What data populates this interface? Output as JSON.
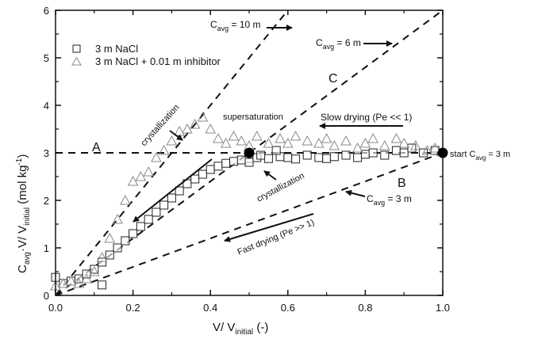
{
  "chart_data": {
    "type": "scatter",
    "title": "",
    "xlabel": {
      "main": "V/ V",
      "sub": "initial",
      "suffix": " (-)"
    },
    "ylabel": {
      "main": "C",
      "sub1": "avg",
      "mid": "·V/ V",
      "sub2": "initial",
      "suffix": " (mol kg",
      "sup": "-1",
      "end": ")"
    },
    "xlim": [
      0,
      1.0
    ],
    "ylim": [
      0,
      6
    ],
    "xticks": [
      0.0,
      0.2,
      0.4,
      0.6,
      0.8,
      1.0
    ],
    "xtick_labels": [
      "0.0",
      "0.2",
      "0.4",
      "0.6",
      "0.8",
      "1.0"
    ],
    "yticks": [
      0,
      1,
      2,
      3,
      4,
      5,
      6
    ],
    "ytick_labels": [
      "0",
      "1",
      "2",
      "3",
      "4",
      "5",
      "6"
    ],
    "grid": false,
    "legend": {
      "placement": "top-left",
      "entries": [
        {
          "label": "3 m NaCl",
          "marker": "square",
          "color": "#222222"
        },
        {
          "label": "3 m NaCl + 0.01 m inhibitor",
          "marker": "triangle",
          "color": "#888888"
        }
      ]
    },
    "series": [
      {
        "name": "3 m NaCl",
        "marker": "square",
        "color": "#222222",
        "x": [
          0.0,
          0.02,
          0.04,
          0.06,
          0.08,
          0.1,
          0.12,
          0.14,
          0.16,
          0.18,
          0.2,
          0.22,
          0.24,
          0.26,
          0.28,
          0.3,
          0.32,
          0.34,
          0.36,
          0.38,
          0.4,
          0.42,
          0.44,
          0.46,
          0.48,
          0.5,
          0.52,
          0.55,
          0.58,
          0.6,
          0.62,
          0.65,
          0.68,
          0.7,
          0.72,
          0.75,
          0.78,
          0.8,
          0.82,
          0.85,
          0.88,
          0.9,
          0.92,
          0.95,
          0.98,
          0.12,
          0.5,
          0.53,
          0.57
        ],
        "y": [
          0.38,
          0.25,
          0.3,
          0.35,
          0.45,
          0.55,
          0.7,
          0.85,
          1.0,
          1.15,
          1.3,
          1.45,
          1.6,
          1.75,
          1.9,
          2.05,
          2.2,
          2.35,
          2.45,
          2.55,
          2.65,
          2.72,
          2.78,
          2.82,
          2.85,
          2.88,
          2.9,
          2.88,
          2.92,
          2.9,
          2.87,
          2.95,
          2.9,
          2.88,
          2.92,
          2.95,
          2.9,
          2.97,
          3.0,
          2.95,
          3.05,
          3.0,
          3.1,
          3.0,
          3.05,
          0.22,
          2.8,
          2.95,
          3.05
        ]
      },
      {
        "name": "3 m NaCl + 0.01 m inhibitor",
        "marker": "triangle",
        "color": "#888888",
        "x": [
          0.0,
          0.02,
          0.04,
          0.06,
          0.08,
          0.1,
          0.12,
          0.14,
          0.16,
          0.18,
          0.2,
          0.22,
          0.24,
          0.26,
          0.28,
          0.3,
          0.32,
          0.34,
          0.36,
          0.38,
          0.4,
          0.42,
          0.44,
          0.46,
          0.48,
          0.5,
          0.52,
          0.55,
          0.58,
          0.6,
          0.62,
          0.65,
          0.68,
          0.7,
          0.72,
          0.75,
          0.78,
          0.8,
          0.82,
          0.85,
          0.88,
          0.9,
          0.93,
          0.96,
          0.98
        ],
        "y": [
          0.2,
          0.25,
          0.3,
          0.25,
          0.35,
          0.5,
          0.8,
          1.2,
          1.6,
          2.0,
          2.4,
          2.5,
          2.6,
          2.9,
          3.05,
          3.25,
          3.45,
          3.5,
          3.6,
          3.75,
          3.5,
          3.3,
          3.2,
          3.35,
          3.25,
          3.15,
          3.35,
          3.2,
          3.3,
          3.2,
          3.35,
          3.25,
          3.2,
          3.3,
          3.15,
          3.25,
          3.1,
          3.2,
          3.3,
          3.15,
          3.3,
          3.2,
          3.15,
          3.05,
          3.1
        ]
      }
    ],
    "reference_lines": [
      {
        "name": "Cavg = 10 m",
        "slope": 10
      },
      {
        "name": "Cavg = 6 m",
        "slope": 6
      },
      {
        "name": "Cavg = 3 m",
        "slope": 3
      },
      {
        "name": "horizontal y = 3",
        "y": 3
      }
    ],
    "markers": [
      {
        "label": "start point",
        "x": 1.0,
        "y": 3.0
      },
      {
        "label": "supersaturation point",
        "x": 0.5,
        "y": 3.0
      }
    ],
    "annotations": {
      "cavg10": {
        "main": "C",
        "sub": "avg",
        "rest": " = 10 m"
      },
      "cavg6": {
        "main": "C",
        "sub": "avg",
        "rest": " = 6 m"
      },
      "cavg3": {
        "main": "C",
        "sub": "avg",
        "rest": " = 3 m"
      },
      "start": {
        "pre": "start C",
        "sub": "avg",
        "rest": " = 3 m"
      },
      "label_a": "A",
      "label_b": "B",
      "label_c": "C",
      "crystallization_upper": "crystallization",
      "crystallization_lower": "crystallization",
      "supersaturation": "supersaturation",
      "slow_drying": "Slow  drying (Pe << 1)",
      "fast_drying": "Fast  drying (Pe >> 1)"
    }
  }
}
